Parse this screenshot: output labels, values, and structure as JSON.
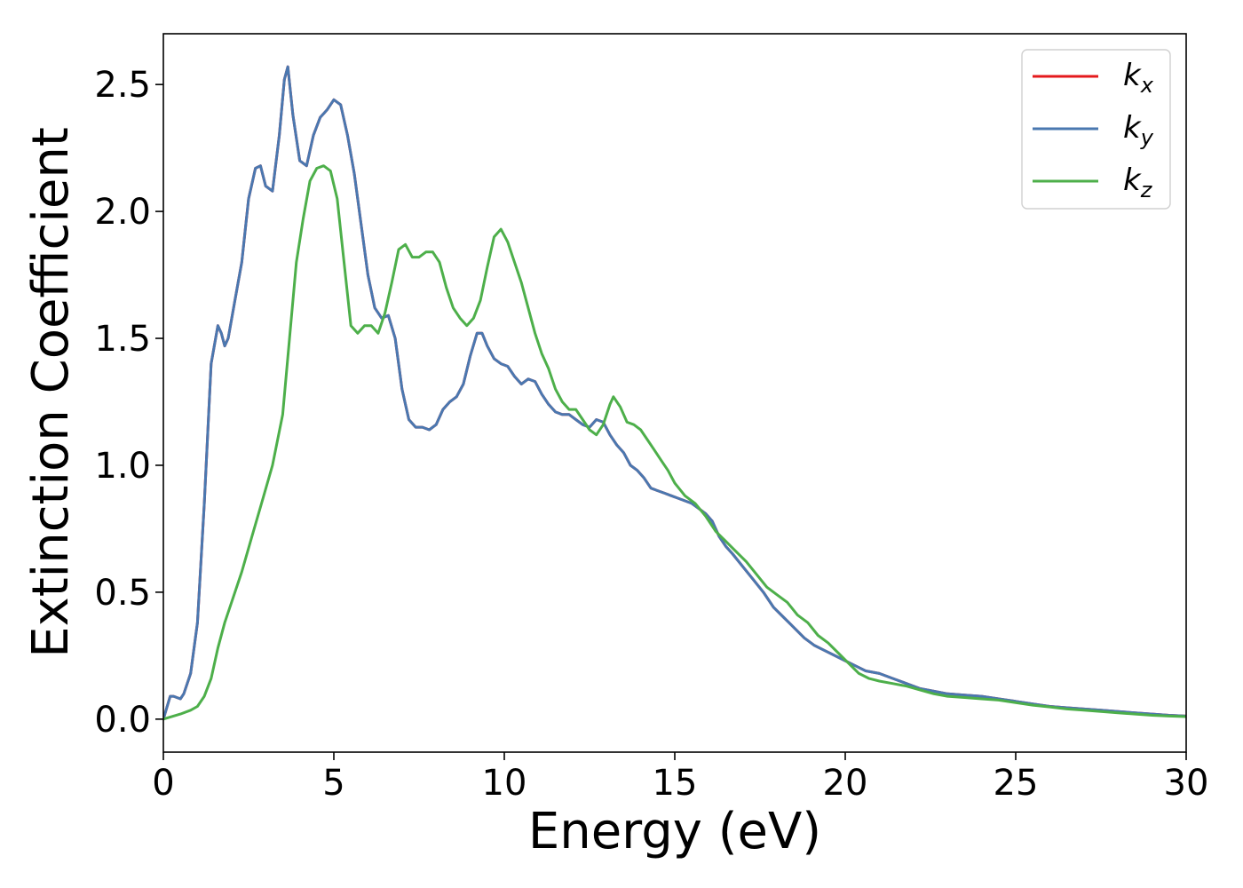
{
  "chart_data": {
    "type": "line",
    "title": "",
    "xlabel": "Energy (eV)",
    "ylabel": "Extinction Coefficient",
    "xlim": [
      0,
      30
    ],
    "ylim": [
      -0.13,
      2.7
    ],
    "xticks": [
      0,
      5,
      10,
      15,
      20,
      25,
      30
    ],
    "xtick_labels": [
      "0",
      "5",
      "10",
      "15",
      "20",
      "25",
      "30"
    ],
    "yticks": [
      0.0,
      0.5,
      1.0,
      1.5,
      2.0,
      2.5
    ],
    "ytick_labels": [
      "0.0",
      "0.5",
      "1.0",
      "1.5",
      "2.0",
      "2.5"
    ],
    "grid": false,
    "legend_position": "top-right",
    "series": [
      {
        "name": "k",
        "subscript": "x",
        "color": "#e41a1c",
        "x": [
          0,
          0.2,
          0.3,
          0.5,
          0.6,
          0.8,
          1.0,
          1.2,
          1.4,
          1.6,
          1.7,
          1.8,
          1.9,
          2.1,
          2.3,
          2.5,
          2.7,
          2.85,
          3.0,
          3.2,
          3.4,
          3.55,
          3.65,
          3.8,
          4.0,
          4.2,
          4.4,
          4.6,
          4.8,
          5.0,
          5.2,
          5.4,
          5.6,
          5.8,
          6.0,
          6.2,
          6.4,
          6.6,
          6.8,
          7.0,
          7.2,
          7.4,
          7.6,
          7.8,
          8.0,
          8.2,
          8.4,
          8.6,
          8.8,
          9.0,
          9.2,
          9.35,
          9.5,
          9.7,
          9.9,
          10.1,
          10.3,
          10.5,
          10.7,
          10.9,
          11.1,
          11.3,
          11.5,
          11.7,
          11.9,
          12.1,
          12.3,
          12.5,
          12.7,
          12.9,
          13.1,
          13.3,
          13.5,
          13.7,
          13.9,
          14.1,
          14.3,
          14.5,
          14.7,
          14.9,
          15.1,
          15.3,
          15.5,
          15.7,
          15.9,
          16.1,
          16.3,
          16.5,
          16.7,
          17.0,
          17.3,
          17.6,
          17.9,
          18.2,
          18.5,
          18.8,
          19.1,
          19.4,
          19.7,
          20.0,
          20.3,
          20.6,
          21.0,
          21.4,
          21.8,
          22.2,
          22.6,
          23.0,
          23.5,
          24.0,
          24.5,
          25.0,
          25.5,
          26.0,
          26.5,
          27.0,
          27.5,
          28.0,
          28.5,
          29.0,
          29.5,
          30.0
        ],
        "y": [
          0.0,
          0.09,
          0.09,
          0.08,
          0.1,
          0.18,
          0.38,
          0.85,
          1.4,
          1.55,
          1.52,
          1.47,
          1.5,
          1.65,
          1.8,
          2.05,
          2.17,
          2.18,
          2.1,
          2.08,
          2.3,
          2.52,
          2.57,
          2.38,
          2.2,
          2.18,
          2.3,
          2.37,
          2.4,
          2.44,
          2.42,
          2.3,
          2.15,
          1.95,
          1.75,
          1.62,
          1.58,
          1.59,
          1.5,
          1.3,
          1.18,
          1.15,
          1.15,
          1.14,
          1.16,
          1.22,
          1.25,
          1.27,
          1.32,
          1.43,
          1.52,
          1.52,
          1.47,
          1.42,
          1.4,
          1.39,
          1.35,
          1.32,
          1.34,
          1.33,
          1.28,
          1.24,
          1.21,
          1.2,
          1.2,
          1.18,
          1.16,
          1.15,
          1.18,
          1.17,
          1.12,
          1.08,
          1.05,
          1.0,
          0.98,
          0.95,
          0.91,
          0.9,
          0.89,
          0.88,
          0.87,
          0.86,
          0.85,
          0.83,
          0.81,
          0.78,
          0.72,
          0.68,
          0.65,
          0.6,
          0.55,
          0.5,
          0.44,
          0.4,
          0.36,
          0.32,
          0.29,
          0.27,
          0.25,
          0.23,
          0.21,
          0.19,
          0.18,
          0.16,
          0.14,
          0.12,
          0.11,
          0.1,
          0.095,
          0.09,
          0.08,
          0.07,
          0.06,
          0.05,
          0.045,
          0.04,
          0.035,
          0.03,
          0.025,
          0.02,
          0.015,
          0.012
        ]
      },
      {
        "name": "k",
        "subscript": "y",
        "color": "#4a78b0",
        "x": [
          0,
          0.2,
          0.3,
          0.5,
          0.6,
          0.8,
          1.0,
          1.2,
          1.4,
          1.6,
          1.7,
          1.8,
          1.9,
          2.1,
          2.3,
          2.5,
          2.7,
          2.85,
          3.0,
          3.2,
          3.4,
          3.55,
          3.65,
          3.8,
          4.0,
          4.2,
          4.4,
          4.6,
          4.8,
          5.0,
          5.2,
          5.4,
          5.6,
          5.8,
          6.0,
          6.2,
          6.4,
          6.6,
          6.8,
          7.0,
          7.2,
          7.4,
          7.6,
          7.8,
          8.0,
          8.2,
          8.4,
          8.6,
          8.8,
          9.0,
          9.2,
          9.35,
          9.5,
          9.7,
          9.9,
          10.1,
          10.3,
          10.5,
          10.7,
          10.9,
          11.1,
          11.3,
          11.5,
          11.7,
          11.9,
          12.1,
          12.3,
          12.5,
          12.7,
          12.9,
          13.1,
          13.3,
          13.5,
          13.7,
          13.9,
          14.1,
          14.3,
          14.5,
          14.7,
          14.9,
          15.1,
          15.3,
          15.5,
          15.7,
          15.9,
          16.1,
          16.3,
          16.5,
          16.7,
          17.0,
          17.3,
          17.6,
          17.9,
          18.2,
          18.5,
          18.8,
          19.1,
          19.4,
          19.7,
          20.0,
          20.3,
          20.6,
          21.0,
          21.4,
          21.8,
          22.2,
          22.6,
          23.0,
          23.5,
          24.0,
          24.5,
          25.0,
          25.5,
          26.0,
          26.5,
          27.0,
          27.5,
          28.0,
          28.5,
          29.0,
          29.5,
          30.0
        ],
        "y": [
          0.0,
          0.09,
          0.09,
          0.08,
          0.1,
          0.18,
          0.38,
          0.85,
          1.4,
          1.55,
          1.52,
          1.47,
          1.5,
          1.65,
          1.8,
          2.05,
          2.17,
          2.18,
          2.1,
          2.08,
          2.3,
          2.52,
          2.57,
          2.38,
          2.2,
          2.18,
          2.3,
          2.37,
          2.4,
          2.44,
          2.42,
          2.3,
          2.15,
          1.95,
          1.75,
          1.62,
          1.58,
          1.59,
          1.5,
          1.3,
          1.18,
          1.15,
          1.15,
          1.14,
          1.16,
          1.22,
          1.25,
          1.27,
          1.32,
          1.43,
          1.52,
          1.52,
          1.47,
          1.42,
          1.4,
          1.39,
          1.35,
          1.32,
          1.34,
          1.33,
          1.28,
          1.24,
          1.21,
          1.2,
          1.2,
          1.18,
          1.16,
          1.15,
          1.18,
          1.17,
          1.12,
          1.08,
          1.05,
          1.0,
          0.98,
          0.95,
          0.91,
          0.9,
          0.89,
          0.88,
          0.87,
          0.86,
          0.85,
          0.83,
          0.81,
          0.78,
          0.72,
          0.68,
          0.65,
          0.6,
          0.55,
          0.5,
          0.44,
          0.4,
          0.36,
          0.32,
          0.29,
          0.27,
          0.25,
          0.23,
          0.21,
          0.19,
          0.18,
          0.16,
          0.14,
          0.12,
          0.11,
          0.1,
          0.095,
          0.09,
          0.08,
          0.07,
          0.06,
          0.05,
          0.045,
          0.04,
          0.035,
          0.03,
          0.025,
          0.02,
          0.015,
          0.012
        ]
      },
      {
        "name": "k",
        "subscript": "z",
        "color": "#4daf4a",
        "x": [
          0,
          0.5,
          0.8,
          1.0,
          1.2,
          1.4,
          1.6,
          1.8,
          2.0,
          2.3,
          2.6,
          2.9,
          3.2,
          3.5,
          3.7,
          3.9,
          4.1,
          4.3,
          4.5,
          4.7,
          4.9,
          5.1,
          5.3,
          5.5,
          5.7,
          5.9,
          6.1,
          6.3,
          6.5,
          6.7,
          6.9,
          7.1,
          7.3,
          7.5,
          7.7,
          7.9,
          8.1,
          8.3,
          8.5,
          8.7,
          8.9,
          9.1,
          9.3,
          9.5,
          9.7,
          9.9,
          10.1,
          10.3,
          10.5,
          10.7,
          10.9,
          11.1,
          11.3,
          11.5,
          11.7,
          11.9,
          12.1,
          12.3,
          12.5,
          12.7,
          12.9,
          13.1,
          13.2,
          13.4,
          13.6,
          13.8,
          14.0,
          14.2,
          14.4,
          14.6,
          14.8,
          15.0,
          15.3,
          15.6,
          15.9,
          16.2,
          16.5,
          16.8,
          17.1,
          17.4,
          17.7,
          18.0,
          18.3,
          18.6,
          18.9,
          19.2,
          19.5,
          19.8,
          20.1,
          20.4,
          20.7,
          21.0,
          21.4,
          21.8,
          22.2,
          22.6,
          23.0,
          23.5,
          24.0,
          24.5,
          25.0,
          25.5,
          26.0,
          26.5,
          27.0,
          27.5,
          28.0,
          28.5,
          29.0,
          29.5,
          30.0
        ],
        "y": [
          0.0,
          0.02,
          0.035,
          0.05,
          0.09,
          0.16,
          0.28,
          0.38,
          0.46,
          0.58,
          0.72,
          0.86,
          1.0,
          1.2,
          1.5,
          1.8,
          1.97,
          2.12,
          2.17,
          2.18,
          2.16,
          2.05,
          1.8,
          1.55,
          1.52,
          1.55,
          1.55,
          1.52,
          1.6,
          1.72,
          1.85,
          1.87,
          1.82,
          1.82,
          1.84,
          1.84,
          1.8,
          1.7,
          1.62,
          1.58,
          1.55,
          1.58,
          1.65,
          1.78,
          1.9,
          1.93,
          1.88,
          1.8,
          1.72,
          1.62,
          1.52,
          1.44,
          1.38,
          1.3,
          1.25,
          1.22,
          1.22,
          1.18,
          1.14,
          1.12,
          1.16,
          1.24,
          1.27,
          1.23,
          1.17,
          1.16,
          1.14,
          1.1,
          1.06,
          1.02,
          0.98,
          0.93,
          0.88,
          0.85,
          0.8,
          0.74,
          0.7,
          0.66,
          0.62,
          0.57,
          0.52,
          0.49,
          0.46,
          0.41,
          0.38,
          0.33,
          0.3,
          0.26,
          0.22,
          0.18,
          0.16,
          0.15,
          0.14,
          0.13,
          0.115,
          0.1,
          0.09,
          0.085,
          0.08,
          0.075,
          0.065,
          0.055,
          0.048,
          0.04,
          0.035,
          0.03,
          0.025,
          0.02,
          0.015,
          0.012,
          0.01
        ]
      }
    ]
  }
}
